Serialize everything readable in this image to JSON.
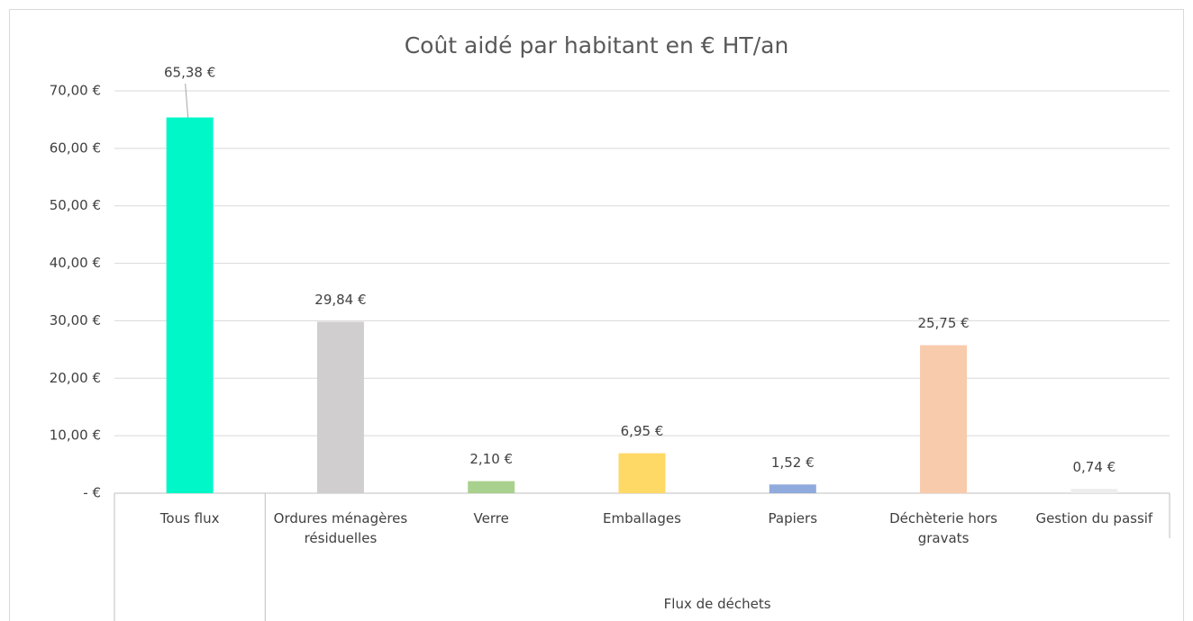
{
  "chart_data": {
    "type": "bar",
    "title": "Coût aidé par habitant en € HT/an",
    "categories": [
      "Tous flux",
      "Ordures ménagères résiduelles",
      "Verre",
      "Emballages",
      "Papiers",
      "Déchèterie hors gravats",
      "Gestion du passif"
    ],
    "category_group": "Flux de déchets",
    "values": [
      65.38,
      29.84,
      2.1,
      6.95,
      1.52,
      25.75,
      0.74
    ],
    "value_labels": [
      "65,38 €",
      "29,84 €",
      "2,10 €",
      "6,95 €",
      "1,52 €",
      "25,75 €",
      "0,74 €"
    ],
    "colors": [
      "#00f7c8",
      "#d0cece",
      "#a9d18e",
      "#ffd966",
      "#8faadc",
      "#f8cbad",
      "#ededed"
    ],
    "ylim": [
      0,
      70
    ],
    "yticks": [
      {
        "value": 0,
        "label": "-   €"
      },
      {
        "value": 10,
        "label": "10,00 €"
      },
      {
        "value": 20,
        "label": "20,00 €"
      },
      {
        "value": 30,
        "label": "30,00 €"
      },
      {
        "value": 40,
        "label": "40,00 €"
      },
      {
        "value": 50,
        "label": "50,00 €"
      },
      {
        "value": 60,
        "label": "60,00 €"
      },
      {
        "value": 70,
        "label": "70,00 €"
      }
    ],
    "grid": true
  }
}
